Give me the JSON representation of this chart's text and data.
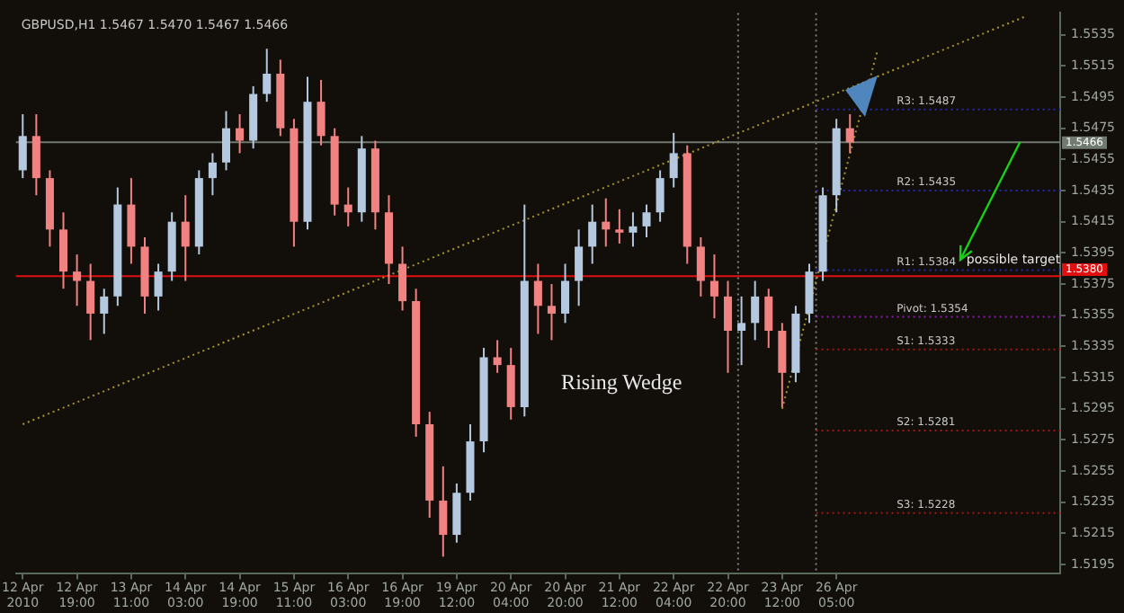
{
  "chart_data": {
    "type": "candlestick",
    "title": "GBPUSD,H1 1.5467 1.5470 1.5467 1.5466",
    "categories": [
      "12 Apr 2010",
      null,
      null,
      null,
      "12 Apr 19:00",
      null,
      null,
      null,
      "13 Apr 11:00",
      null,
      null,
      null,
      "14 Apr 03:00",
      null,
      null,
      null,
      "14 Apr 19:00",
      null,
      null,
      null,
      "15 Apr 11:00",
      null,
      null,
      null,
      "16 Apr 03:00",
      null,
      null,
      null,
      "16 Apr 19:00",
      null,
      null,
      null,
      "19 Apr 12:00",
      null,
      null,
      null,
      "20 Apr 04:00",
      null,
      null,
      null,
      "20 Apr 20:00",
      null,
      null,
      null,
      "21 Apr 12:00",
      null,
      null,
      null,
      "22 Apr 04:00",
      null,
      null,
      null,
      "22 Apr 20:00",
      null,
      null,
      null,
      "23 Apr 12:00",
      null,
      null,
      null,
      "26 Apr 05:00",
      null,
      null,
      null,
      null,
      null,
      null,
      null,
      null,
      null,
      null,
      null,
      null,
      null,
      null,
      null,
      null
    ],
    "ohlc": [
      [
        1.5448,
        1.5484,
        1.5443,
        1.547
      ],
      [
        1.547,
        1.5484,
        1.5432,
        1.5443
      ],
      [
        1.5443,
        1.5448,
        1.5399,
        1.541
      ],
      [
        1.541,
        1.5421,
        1.5372,
        1.5383
      ],
      [
        1.5383,
        1.5394,
        1.5361,
        1.5377
      ],
      [
        1.5377,
        1.5388,
        1.5339,
        1.5356
      ],
      [
        1.5356,
        1.5372,
        1.5343,
        1.5367
      ],
      [
        1.5367,
        1.5437,
        1.5361,
        1.5426
      ],
      [
        1.5426,
        1.5443,
        1.5388,
        1.5399
      ],
      [
        1.5399,
        1.5405,
        1.5356,
        1.5367
      ],
      [
        1.5367,
        1.5388,
        1.5358,
        1.5383
      ],
      [
        1.5383,
        1.5421,
        1.5377,
        1.5415
      ],
      [
        1.5415,
        1.5432,
        1.5377,
        1.5399
      ],
      [
        1.5399,
        1.5448,
        1.5394,
        1.5443
      ],
      [
        1.5443,
        1.5459,
        1.5432,
        1.5453
      ],
      [
        1.5453,
        1.5486,
        1.5448,
        1.5475
      ],
      [
        1.5475,
        1.5484,
        1.5459,
        1.5467
      ],
      [
        1.5467,
        1.5502,
        1.5462,
        1.5497
      ],
      [
        1.5497,
        1.5526,
        1.5492,
        1.551
      ],
      [
        1.551,
        1.5519,
        1.547,
        1.5475
      ],
      [
        1.5475,
        1.5481,
        1.5399,
        1.5415
      ],
      [
        1.5415,
        1.5508,
        1.541,
        1.5492
      ],
      [
        1.5492,
        1.5506,
        1.5464,
        1.547
      ],
      [
        1.547,
        1.5475,
        1.5419,
        1.5426
      ],
      [
        1.5426,
        1.5437,
        1.5412,
        1.5421
      ],
      [
        1.5421,
        1.547,
        1.5415,
        1.5462
      ],
      [
        1.5462,
        1.5467,
        1.541,
        1.5421
      ],
      [
        1.5421,
        1.5432,
        1.5375,
        1.5388
      ],
      [
        1.5388,
        1.5399,
        1.5358,
        1.5364
      ],
      [
        1.5364,
        1.5372,
        1.5277,
        1.5285
      ],
      [
        1.5285,
        1.5293,
        1.5225,
        1.5236
      ],
      [
        1.5236,
        1.5258,
        1.52,
        1.5214
      ],
      [
        1.5214,
        1.5247,
        1.5209,
        1.5241
      ],
      [
        1.5241,
        1.5285,
        1.5236,
        1.5274
      ],
      [
        1.5274,
        1.5334,
        1.5267,
        1.5328
      ],
      [
        1.5328,
        1.5339,
        1.5318,
        1.5323
      ],
      [
        1.5323,
        1.5334,
        1.5288,
        1.5296
      ],
      [
        1.5296,
        1.5426,
        1.529,
        1.5377
      ],
      [
        1.5377,
        1.5388,
        1.5343,
        1.5361
      ],
      [
        1.5361,
        1.5375,
        1.5339,
        1.5356
      ],
      [
        1.5356,
        1.5388,
        1.535,
        1.5377
      ],
      [
        1.5377,
        1.541,
        1.5361,
        1.5399
      ],
      [
        1.5399,
        1.5426,
        1.5388,
        1.5415
      ],
      [
        1.5415,
        1.543,
        1.5399,
        1.541
      ],
      [
        1.541,
        1.5423,
        1.5401,
        1.5408
      ],
      [
        1.5408,
        1.5421,
        1.5399,
        1.5412
      ],
      [
        1.5412,
        1.5426,
        1.5405,
        1.5421
      ],
      [
        1.5421,
        1.5448,
        1.5415,
        1.5443
      ],
      [
        1.5443,
        1.5472,
        1.5437,
        1.5459
      ],
      [
        1.5459,
        1.5464,
        1.5388,
        1.5399
      ],
      [
        1.5399,
        1.5405,
        1.5367,
        1.5377
      ],
      [
        1.5377,
        1.5394,
        1.5353,
        1.5367
      ],
      [
        1.5367,
        1.5377,
        1.5318,
        1.5345
      ],
      [
        1.5345,
        1.5367,
        1.5323,
        1.535
      ],
      [
        1.535,
        1.5377,
        1.5339,
        1.5367
      ],
      [
        1.5367,
        1.5372,
        1.5334,
        1.5345
      ],
      [
        1.5345,
        1.535,
        1.5296,
        1.5318
      ],
      [
        1.5318,
        1.5361,
        1.5312,
        1.5356
      ],
      [
        1.5356,
        1.5388,
        1.535,
        1.5383
      ],
      [
        1.5383,
        1.5437,
        1.5377,
        1.5432
      ],
      [
        1.5432,
        1.5481,
        1.5421,
        1.5475
      ],
      [
        1.5475,
        1.5484,
        1.5459,
        1.5466
      ],
      null,
      null,
      null,
      null,
      null,
      null,
      null,
      null,
      null,
      null,
      null,
      null,
      null,
      null,
      null
    ],
    "series": [
      {
        "type": "line",
        "values": [
          1.5285,
          null,
          null,
          null,
          null,
          null,
          null,
          null,
          null,
          null,
          null,
          null,
          null,
          null,
          null,
          null,
          null,
          null,
          null,
          null,
          null,
          null,
          null,
          null,
          null,
          null,
          null,
          null,
          null,
          null,
          null,
          null,
          null,
          null,
          null,
          null,
          null,
          null,
          null,
          null,
          null,
          null,
          null,
          null,
          null,
          null,
          null,
          null,
          null,
          null,
          null,
          null,
          null,
          null,
          null,
          null,
          null,
          null,
          null,
          null,
          null,
          null,
          null,
          null,
          null,
          null,
          null,
          null,
          null,
          null,
          null,
          null,
          null,
          null,
          1.5547,
          null,
          null
        ],
        "color": "#a8952e",
        "line_style": "dotted"
      },
      {
        "type": "line",
        "values": [
          null,
          null,
          null,
          null,
          null,
          null,
          null,
          null,
          null,
          null,
          null,
          null,
          null,
          null,
          null,
          null,
          null,
          null,
          null,
          null,
          null,
          null,
          null,
          null,
          null,
          null,
          null,
          null,
          null,
          null,
          null,
          null,
          null,
          null,
          null,
          null,
          null,
          null,
          null,
          null,
          null,
          null,
          null,
          null,
          null,
          null,
          null,
          null,
          null,
          null,
          null,
          null,
          null,
          null,
          null,
          null,
          1.5295,
          null,
          null,
          null,
          null,
          null,
          null,
          1.5524,
          null,
          null,
          null,
          null,
          null,
          null,
          null,
          null,
          null,
          null,
          null,
          null,
          null
        ],
        "color": "#a8952e",
        "line_style": "dotted"
      }
    ],
    "ylim": [
      1.5189,
      1.5549
    ],
    "yticks": [
      1.5195,
      1.5215,
      1.5235,
      1.5255,
      1.5275,
      1.5295,
      1.5315,
      1.5335,
      1.5355,
      1.5375,
      1.5395,
      1.5415,
      1.5435,
      1.5455,
      1.5475,
      1.5495,
      1.5515,
      1.5535
    ],
    "ref_lines": [
      {
        "axis": "y",
        "value": 1.5466,
        "label": "1.5466",
        "color": "#707a70",
        "line_style": "solid"
      },
      {
        "axis": "y",
        "value": 1.538,
        "label": "1.5380",
        "color": "#e01010",
        "line_style": "solid"
      },
      {
        "axis": "y",
        "value": 1.5487,
        "label": "R3: 1.5487",
        "color": "#2828b0",
        "line_style": "dotted"
      },
      {
        "axis": "y",
        "value": 1.5435,
        "label": "R2: 1.5435",
        "color": "#2828b0",
        "line_style": "dotted"
      },
      {
        "axis": "y",
        "value": 1.5384,
        "label": "R1: 1.5384",
        "color": "#2828b0",
        "line_style": "dotted"
      },
      {
        "axis": "y",
        "value": 1.5354,
        "label": "Pivot: 1.5354",
        "color": "#8a1ab0",
        "line_style": "dotted"
      },
      {
        "axis": "y",
        "value": 1.5333,
        "label": "S1: 1.5333",
        "color": "#a01818",
        "line_style": "dotted"
      },
      {
        "axis": "y",
        "value": 1.5281,
        "label": "S2: 1.5281",
        "color": "#a01818",
        "line_style": "dotted"
      },
      {
        "axis": "y",
        "value": 1.5228,
        "label": "S3: 1.5228",
        "color": "#a01818",
        "line_style": "dotted"
      }
    ],
    "annotations": [
      "Rising Wedge",
      {
        "text": "possible target",
        "y": 1.5387
      }
    ],
    "grid": false,
    "legend": false
  }
}
